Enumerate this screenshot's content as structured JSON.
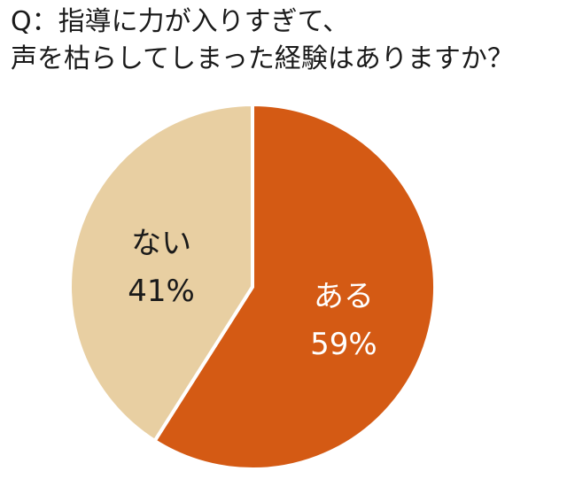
{
  "chart_data": {
    "type": "pie",
    "title": [
      "Q：指導に力が入りすぎて、",
      "声を枯らしてしまった経験はありますか？"
    ],
    "slices": [
      {
        "label": "ある",
        "value": 59,
        "value_label": "59%",
        "color": "#d45a14",
        "text_color": "#ffffff"
      },
      {
        "label": "ない",
        "value": 41,
        "value_label": "41%",
        "color": "#e8cfa2",
        "text_color": "#1a1a1a"
      }
    ],
    "start": "12 o'clock, clockwise"
  }
}
